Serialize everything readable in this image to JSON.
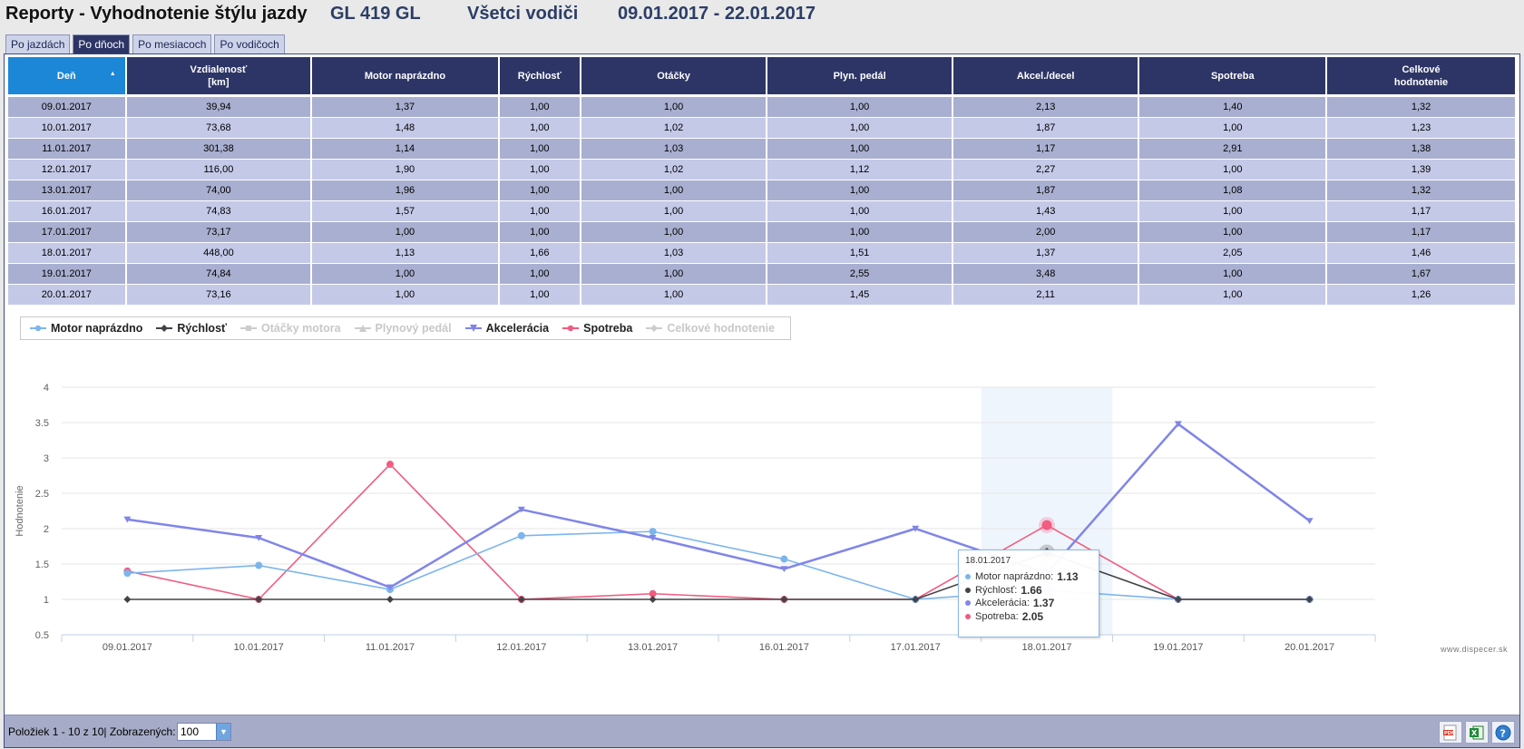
{
  "header": {
    "title": "Reporty - Vyhodnotenie štýlu jazdy",
    "vehicle": "GL  419 GL",
    "drivers": "Všetci vodiči",
    "period": "09.01.2017 - 22.01.2017"
  },
  "tabs": [
    {
      "label": "Po jazdách",
      "active": false
    },
    {
      "label": "Po dňoch",
      "active": true
    },
    {
      "label": "Po mesiacoch",
      "active": false
    },
    {
      "label": "Po vodičoch",
      "active": false
    }
  ],
  "table": {
    "columns": [
      "Deň",
      "Vzdialenosť\n[km]",
      "Motor naprázdno",
      "Rýchlosť",
      "Otáčky",
      "Plyn. pedál",
      "Akcel./decel",
      "Spotreba",
      "Celkové\nhodnotenie"
    ],
    "rows": [
      [
        "09.01.2017",
        "39,94",
        "1,37",
        "1,00",
        "1,00",
        "1,00",
        "2,13",
        "1,40",
        "1,32"
      ],
      [
        "10.01.2017",
        "73,68",
        "1,48",
        "1,00",
        "1,02",
        "1,00",
        "1,87",
        "1,00",
        "1,23"
      ],
      [
        "11.01.2017",
        "301,38",
        "1,14",
        "1,00",
        "1,03",
        "1,00",
        "1,17",
        "2,91",
        "1,38"
      ],
      [
        "12.01.2017",
        "116,00",
        "1,90",
        "1,00",
        "1,02",
        "1,12",
        "2,27",
        "1,00",
        "1,39"
      ],
      [
        "13.01.2017",
        "74,00",
        "1,96",
        "1,00",
        "1,00",
        "1,00",
        "1,87",
        "1,08",
        "1,32"
      ],
      [
        "16.01.2017",
        "74,83",
        "1,57",
        "1,00",
        "1,00",
        "1,00",
        "1,43",
        "1,00",
        "1,17"
      ],
      [
        "17.01.2017",
        "73,17",
        "1,00",
        "1,00",
        "1,00",
        "1,00",
        "2,00",
        "1,00",
        "1,17"
      ],
      [
        "18.01.2017",
        "448,00",
        "1,13",
        "1,66",
        "1,03",
        "1,51",
        "1,37",
        "2,05",
        "1,46"
      ],
      [
        "19.01.2017",
        "74,84",
        "1,00",
        "1,00",
        "1,00",
        "2,55",
        "3,48",
        "1,00",
        "1,67"
      ],
      [
        "20.01.2017",
        "73,16",
        "1,00",
        "1,00",
        "1,00",
        "1,45",
        "2,11",
        "1,00",
        "1,26"
      ]
    ]
  },
  "chart_data": {
    "type": "line",
    "ylabel": "Hodnotenie",
    "xlabel": "",
    "ylim": [
      0.5,
      4
    ],
    "yticks": [
      "0.5",
      "1",
      "1.5",
      "2",
      "2.5",
      "3",
      "3.5",
      "4"
    ],
    "ytick_values": [
      0.5,
      1,
      1.5,
      2,
      2.5,
      3,
      3.5,
      4
    ],
    "categories": [
      "09.01.2017",
      "10.01.2017",
      "11.01.2017",
      "12.01.2017",
      "13.01.2017",
      "16.01.2017",
      "17.01.2017",
      "18.01.2017",
      "19.01.2017",
      "20.01.2017"
    ],
    "legend_position": "top-left",
    "grid": true,
    "series": [
      {
        "name": "Motor naprázdno",
        "color": "#7cb5ec",
        "marker": "circle",
        "visible": true,
        "values": [
          1.37,
          1.48,
          1.14,
          1.9,
          1.96,
          1.57,
          1.0,
          1.13,
          1.0,
          1.0
        ]
      },
      {
        "name": "Rýchlosť",
        "color": "#434348",
        "marker": "diamond",
        "visible": true,
        "values": [
          1.0,
          1.0,
          1.0,
          1.0,
          1.0,
          1.0,
          1.0,
          1.66,
          1.0,
          1.0
        ]
      },
      {
        "name": "Otáčky motora",
        "color": "#cccccc",
        "marker": "square",
        "visible": false,
        "values": [
          1.0,
          1.02,
          1.03,
          1.02,
          1.0,
          1.0,
          1.0,
          1.03,
          1.0,
          1.0
        ]
      },
      {
        "name": "Plynový pedál",
        "color": "#cccccc",
        "marker": "triangle",
        "visible": false,
        "values": [
          1.0,
          1.0,
          1.0,
          1.12,
          1.0,
          1.0,
          1.0,
          1.51,
          2.55,
          1.45
        ]
      },
      {
        "name": "Akcelerácia",
        "color": "#8085e9",
        "marker": "triangle-down",
        "visible": true,
        "values": [
          2.13,
          1.87,
          1.17,
          2.27,
          1.87,
          1.43,
          2.0,
          1.37,
          3.48,
          2.11
        ]
      },
      {
        "name": "Spotreba",
        "color": "#f15c80",
        "marker": "circle",
        "visible": true,
        "values": [
          1.4,
          1.0,
          2.91,
          1.0,
          1.08,
          1.0,
          1.0,
          2.05,
          1.0,
          1.0
        ]
      },
      {
        "name": "Celkové hodnotenie",
        "color": "#cccccc",
        "marker": "diamond",
        "visible": false,
        "values": [
          1.32,
          1.23,
          1.38,
          1.39,
          1.32,
          1.17,
          1.17,
          1.46,
          1.67,
          1.26
        ]
      }
    ],
    "hover_index": 7,
    "tooltip": {
      "date": "18.01.2017",
      "rows": [
        {
          "label": "Motor naprázdno:",
          "value": "1.13",
          "color": "#7cb5ec"
        },
        {
          "label": "Rýchlosť:",
          "value": "1.66",
          "color": "#434348"
        },
        {
          "label": "Akcelerácia:",
          "value": "1.37",
          "color": "#8085e9"
        },
        {
          "label": "Spotreba:",
          "value": "2.05",
          "color": "#f15c80"
        }
      ]
    },
    "credit": "www.dispecer.sk"
  },
  "footer": {
    "info": "Položiek 1 - 10 z 10| Zobrazených:",
    "page_size": "100",
    "icons": [
      "pdf-icon",
      "excel-icon",
      "help-icon"
    ]
  }
}
